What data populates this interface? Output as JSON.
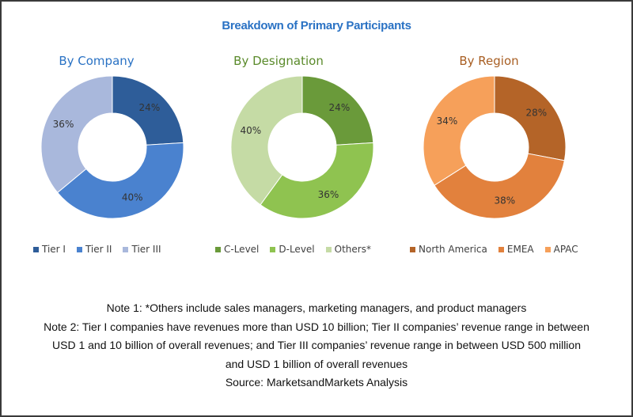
{
  "title": "Breakdown of Primary Participants",
  "chart_data": [
    {
      "type": "pie",
      "donut": true,
      "title": "By Company",
      "title_color": "#2a72c4",
      "categories": [
        "Tier I",
        "Tier II",
        "Tier III"
      ],
      "values": [
        24,
        40,
        36
      ],
      "labels": [
        "24%",
        "40%",
        "36%"
      ],
      "colors": [
        "#2e5d99",
        "#4a82cf",
        "#a9b8dc"
      ],
      "legend": "bottom"
    },
    {
      "type": "pie",
      "donut": true,
      "title": "By Designation",
      "title_color": "#5a8a2a",
      "categories": [
        "C-Level",
        "D-Level",
        "Others*"
      ],
      "values": [
        24,
        36,
        40
      ],
      "labels": [
        "24%",
        "36%",
        "40%"
      ],
      "colors": [
        "#6a9a3a",
        "#8fc350",
        "#c5dba5"
      ],
      "legend": "bottom"
    },
    {
      "type": "pie",
      "donut": true,
      "title": "By Region",
      "title_color": "#a85e22",
      "categories": [
        "North America",
        "EMEA",
        "APAC"
      ],
      "values": [
        28,
        38,
        34
      ],
      "labels": [
        "28%",
        "38%",
        "34%"
      ],
      "colors": [
        "#b46428",
        "#e2813d",
        "#f6a05a"
      ],
      "legend": "bottom"
    }
  ],
  "notes": [
    "Note 1: *Others include sales managers, marketing managers, and product managers",
    "Note 2: Tier I companies have revenues more than USD 10 billion; Tier II companies’ revenue range in between",
    "USD 1 and 10 billion of overall revenues; and Tier III companies’ revenue range in between USD 500 million",
    "and USD 1 billion of overall revenues",
    "Source: MarketsandMarkets Analysis"
  ]
}
